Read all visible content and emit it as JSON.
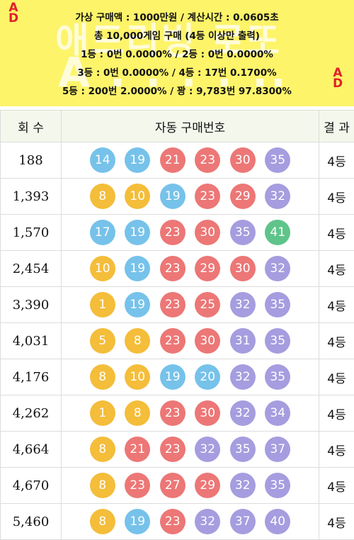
{
  "banner": {
    "ad_badge": "AD",
    "watermark_line1": "애드리빙 로또",
    "watermark_line2": "A . . . . ..",
    "lines": [
      "가상 구매액 : 1000만원 / 계산시간 : 0.0605초",
      "총 10,000게임 구매 (4등 이상만 출력)",
      "1등 : 0번 0.0000% / 2등 : 0번 0.0000%",
      "3등 : 0번 0.0000% / 4등 : 17번 0.1700%",
      "5등 : 200번 2.0000% / 꽝 : 9,783번 97.8300%"
    ]
  },
  "table": {
    "headers": {
      "round": "회 수",
      "numbers": "자동 구매번호",
      "result": "결 과"
    },
    "rows": [
      {
        "round": "188",
        "numbers": [
          "14",
          "19",
          "21",
          "23",
          "30",
          "35"
        ],
        "result": "4등"
      },
      {
        "round": "1,393",
        "numbers": [
          "8",
          "10",
          "19",
          "23",
          "29",
          "32"
        ],
        "result": "4등"
      },
      {
        "round": "1,570",
        "numbers": [
          "17",
          "19",
          "23",
          "30",
          "35",
          "41"
        ],
        "result": "4등"
      },
      {
        "round": "2,454",
        "numbers": [
          "10",
          "19",
          "23",
          "29",
          "30",
          "32"
        ],
        "result": "4등"
      },
      {
        "round": "3,390",
        "numbers": [
          "1",
          "19",
          "23",
          "25",
          "32",
          "35"
        ],
        "result": "4등"
      },
      {
        "round": "4,031",
        "numbers": [
          "5",
          "8",
          "23",
          "30",
          "31",
          "35"
        ],
        "result": "4등"
      },
      {
        "round": "4,176",
        "numbers": [
          "8",
          "10",
          "19",
          "20",
          "32",
          "35"
        ],
        "result": "4등"
      },
      {
        "round": "4,262",
        "numbers": [
          "1",
          "8",
          "23",
          "30",
          "32",
          "34"
        ],
        "result": "4등"
      },
      {
        "round": "4,664",
        "numbers": [
          "8",
          "21",
          "23",
          "32",
          "35",
          "37"
        ],
        "result": "4등"
      },
      {
        "round": "4,670",
        "numbers": [
          "8",
          "23",
          "27",
          "29",
          "32",
          "35"
        ],
        "result": "4등"
      },
      {
        "round": "5,460",
        "numbers": [
          "8",
          "19",
          "23",
          "32",
          "37",
          "40"
        ],
        "result": "4등"
      }
    ]
  },
  "colors": {
    "banner_bg": "#fdf46a",
    "ad_badge": "#e0202a",
    "ball_1_10": "#f4bd3a",
    "ball_11_20": "#76c2ea",
    "ball_21_30": "#ec7776",
    "ball_31_40": "#a59ddf",
    "ball_41_45": "#5fc48a"
  }
}
